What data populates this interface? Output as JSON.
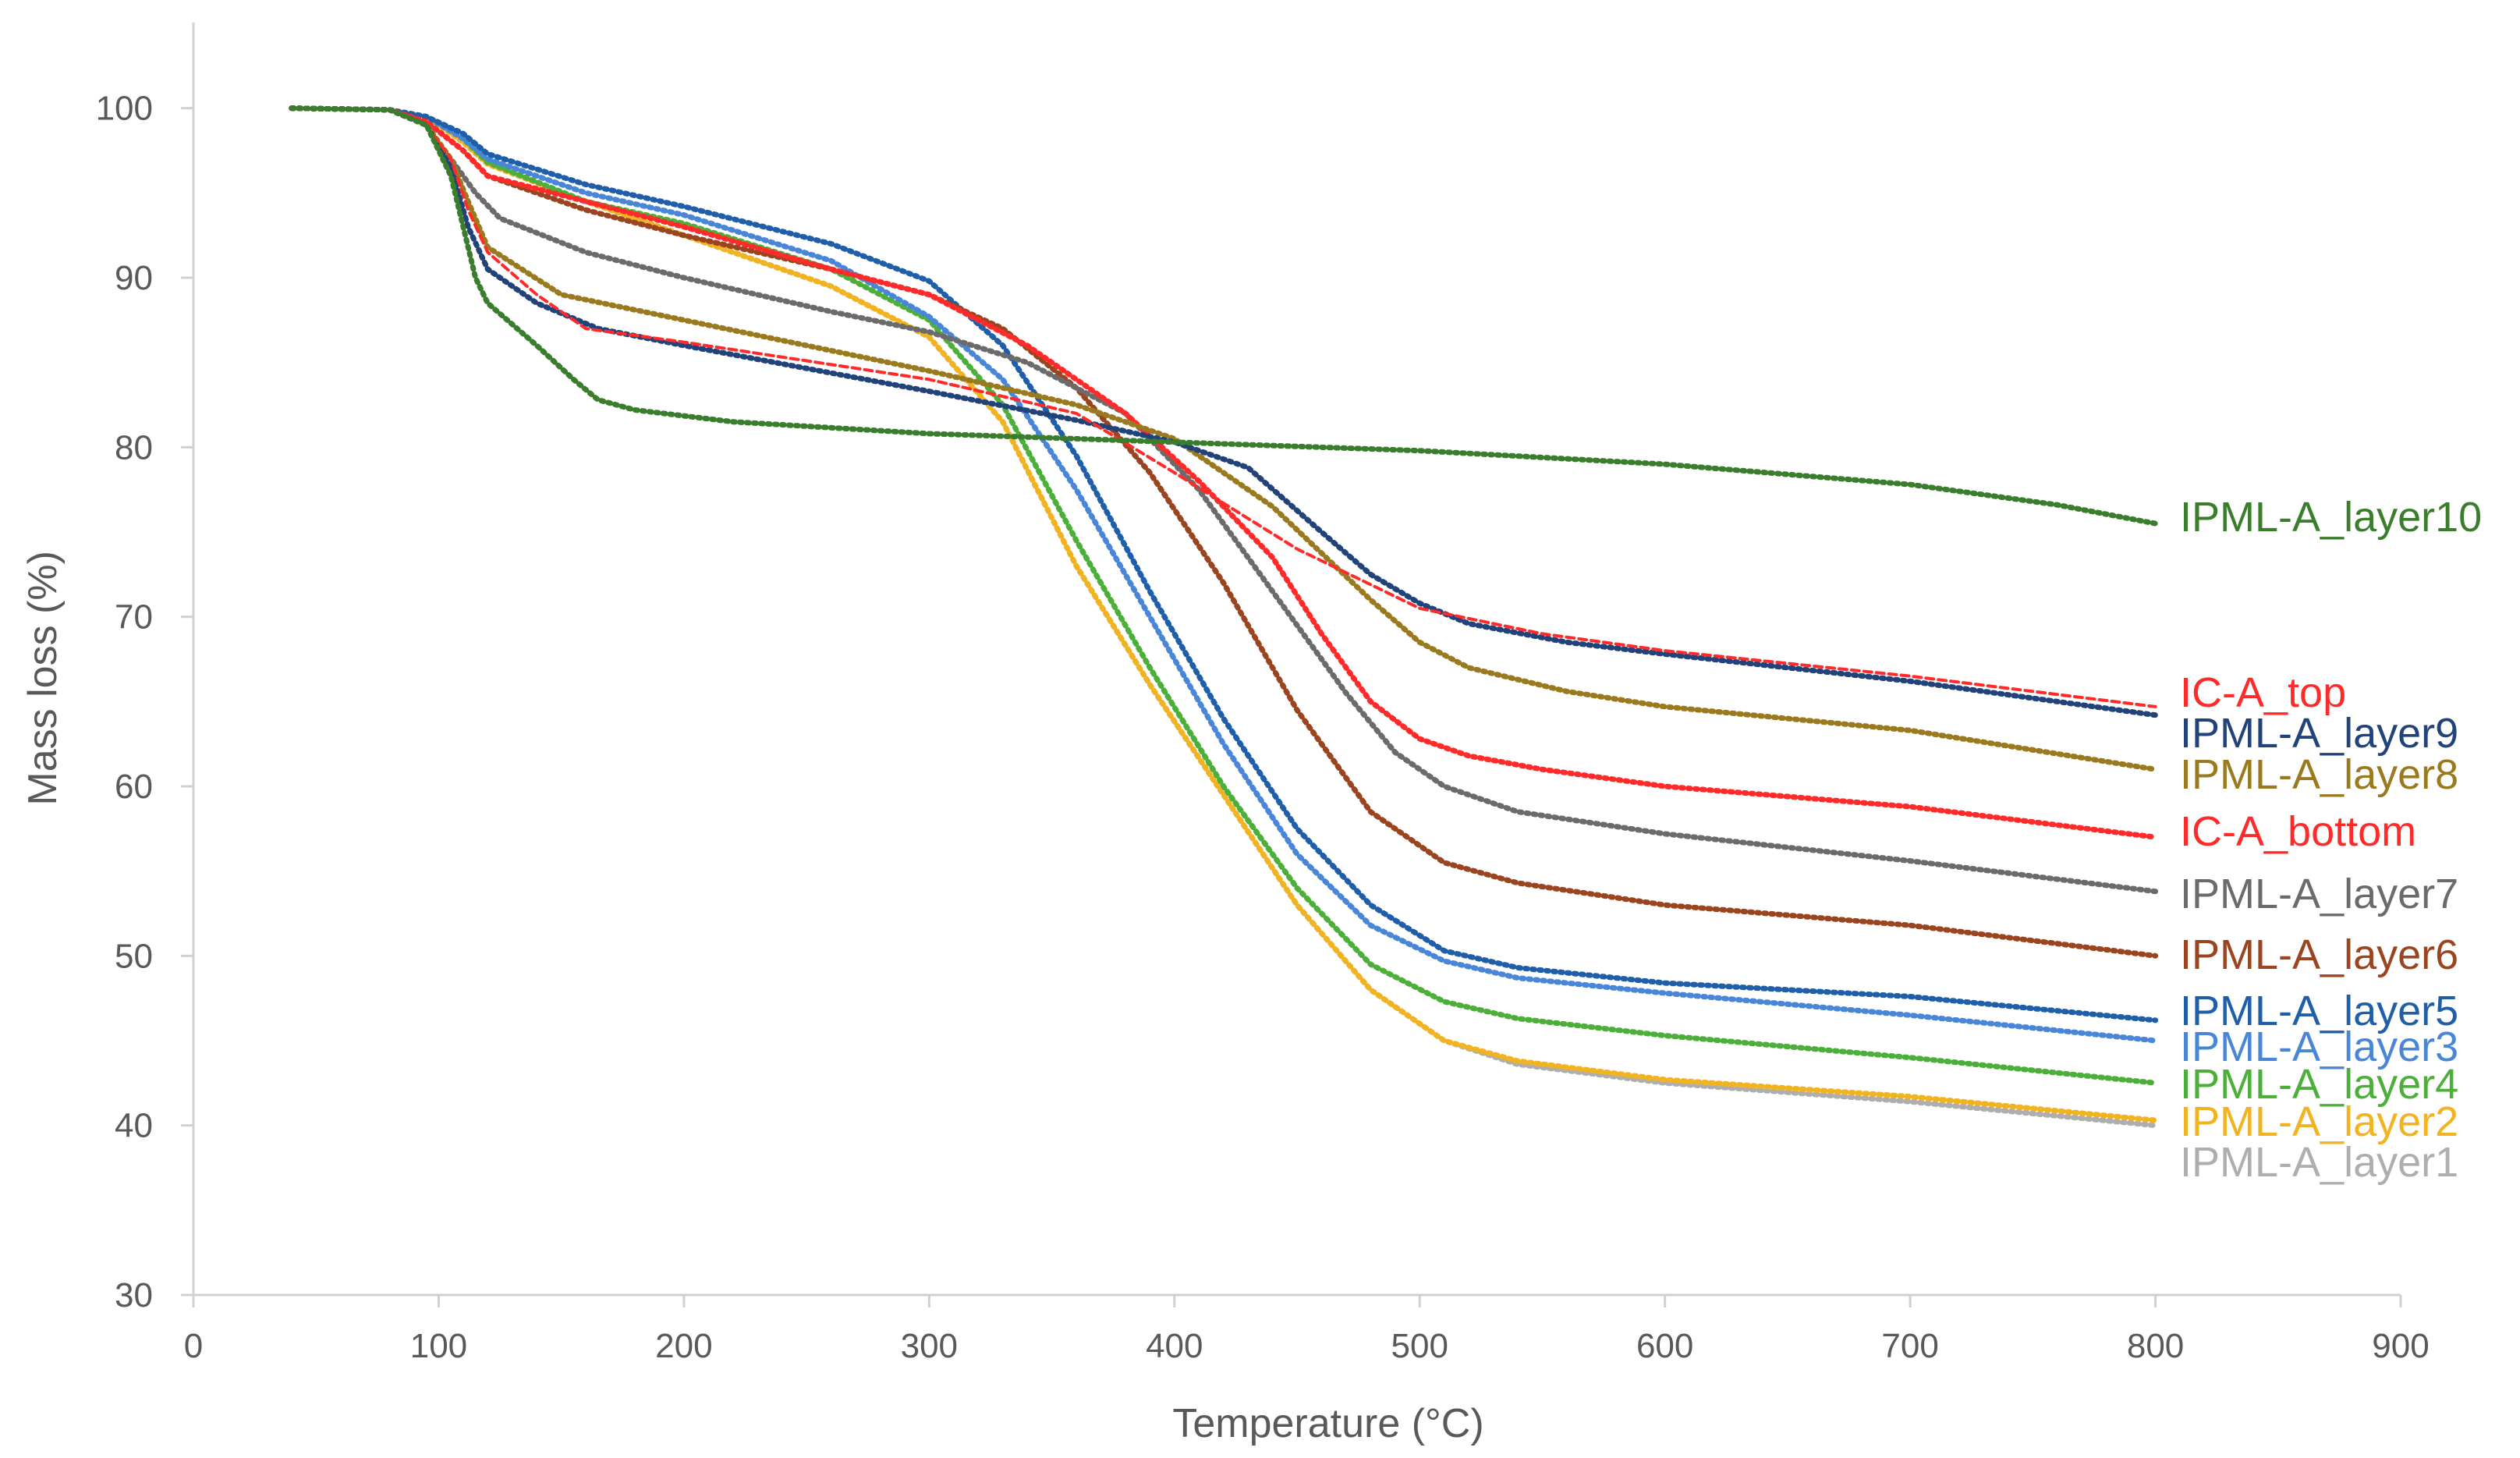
{
  "chart_data": {
    "type": "line",
    "title": "",
    "xlabel": "Temperature (°C)",
    "ylabel": "Mass loss (%)",
    "xlim": [
      0,
      900
    ],
    "ylim": [
      30,
      105
    ],
    "x_ticks": [
      0,
      100,
      200,
      300,
      400,
      500,
      600,
      700,
      800,
      900
    ],
    "y_ticks": [
      30,
      40,
      50,
      60,
      70,
      80,
      90,
      100
    ],
    "grid": false,
    "legend_position": "right, at line ends",
    "series": [
      {
        "name": "IPML-A_layer10",
        "color": "#3a7d2c",
        "dashed": false,
        "points": [
          [
            40,
            100
          ],
          [
            80,
            99.9
          ],
          [
            95,
            99
          ],
          [
            105,
            96
          ],
          [
            110,
            93
          ],
          [
            115,
            90
          ],
          [
            120,
            88.5
          ],
          [
            140,
            86
          ],
          [
            155,
            84
          ],
          [
            165,
            82.8
          ],
          [
            180,
            82.2
          ],
          [
            220,
            81.5
          ],
          [
            300,
            80.8
          ],
          [
            400,
            80.3
          ],
          [
            500,
            79.8
          ],
          [
            600,
            79
          ],
          [
            700,
            77.8
          ],
          [
            760,
            76.6
          ],
          [
            800,
            75.5
          ]
        ]
      },
      {
        "name": "IC-A_top",
        "color": "#ff2a2a",
        "dashed": true,
        "points": [
          [
            40,
            100
          ],
          [
            80,
            99.9
          ],
          [
            95,
            99
          ],
          [
            105,
            97
          ],
          [
            112,
            94
          ],
          [
            120,
            91.5
          ],
          [
            140,
            89
          ],
          [
            160,
            87
          ],
          [
            200,
            86.2
          ],
          [
            300,
            84
          ],
          [
            360,
            82
          ],
          [
            400,
            78.5
          ],
          [
            450,
            74
          ],
          [
            500,
            70.5
          ],
          [
            550,
            69
          ],
          [
            600,
            68
          ],
          [
            700,
            66.5
          ],
          [
            800,
            64.7
          ]
        ]
      },
      {
        "name": "IPML-A_layer9",
        "color": "#22427a",
        "dashed": false,
        "points": [
          [
            40,
            100
          ],
          [
            80,
            99.9
          ],
          [
            95,
            99
          ],
          [
            105,
            96.5
          ],
          [
            112,
            93
          ],
          [
            120,
            90.5
          ],
          [
            140,
            88.5
          ],
          [
            165,
            87
          ],
          [
            200,
            86
          ],
          [
            300,
            83.3
          ],
          [
            360,
            81.6
          ],
          [
            400,
            80.3
          ],
          [
            430,
            78.8
          ],
          [
            460,
            75
          ],
          [
            480,
            72.5
          ],
          [
            500,
            70.8
          ],
          [
            520,
            69.6
          ],
          [
            560,
            68.5
          ],
          [
            600,
            67.8
          ],
          [
            700,
            66.2
          ],
          [
            800,
            64.2
          ]
        ]
      },
      {
        "name": "IPML-A_layer8",
        "color": "#9a7a1e",
        "dashed": false,
        "points": [
          [
            40,
            100
          ],
          [
            80,
            99.9
          ],
          [
            95,
            99
          ],
          [
            105,
            97
          ],
          [
            112,
            94.5
          ],
          [
            120,
            91.8
          ],
          [
            150,
            89
          ],
          [
            200,
            87.5
          ],
          [
            300,
            84.5
          ],
          [
            360,
            82.5
          ],
          [
            400,
            80.5
          ],
          [
            440,
            76.5
          ],
          [
            480,
            71
          ],
          [
            500,
            68.5
          ],
          [
            520,
            67
          ],
          [
            560,
            65.6
          ],
          [
            600,
            64.7
          ],
          [
            700,
            63.3
          ],
          [
            800,
            61
          ]
        ]
      },
      {
        "name": "IC-A_bottom",
        "color": "#ff2a2a",
        "dashed": false,
        "points": [
          [
            40,
            100
          ],
          [
            80,
            99.9
          ],
          [
            95,
            99.2
          ],
          [
            110,
            97.5
          ],
          [
            120,
            96
          ],
          [
            160,
            94.5
          ],
          [
            200,
            93
          ],
          [
            260,
            90.5
          ],
          [
            300,
            89
          ],
          [
            340,
            86
          ],
          [
            380,
            82
          ],
          [
            410,
            78
          ],
          [
            440,
            73.5
          ],
          [
            460,
            69
          ],
          [
            480,
            65
          ],
          [
            500,
            62.8
          ],
          [
            520,
            61.8
          ],
          [
            550,
            61
          ],
          [
            600,
            60
          ],
          [
            700,
            58.8
          ],
          [
            800,
            57
          ]
        ]
      },
      {
        "name": "IPML-A_layer7",
        "color": "#6b6b6b",
        "dashed": false,
        "points": [
          [
            40,
            100
          ],
          [
            80,
            99.9
          ],
          [
            95,
            99
          ],
          [
            105,
            97
          ],
          [
            115,
            95
          ],
          [
            125,
            93.5
          ],
          [
            160,
            91.5
          ],
          [
            200,
            90
          ],
          [
            260,
            88
          ],
          [
            300,
            86.8
          ],
          [
            340,
            85
          ],
          [
            380,
            82
          ],
          [
            410,
            77.5
          ],
          [
            440,
            71.5
          ],
          [
            470,
            65.5
          ],
          [
            490,
            62
          ],
          [
            510,
            60
          ],
          [
            540,
            58.5
          ],
          [
            600,
            57.2
          ],
          [
            700,
            55.6
          ],
          [
            800,
            53.8
          ]
        ]
      },
      {
        "name": "IPML-A_layer6",
        "color": "#9a4520",
        "dashed": false,
        "points": [
          [
            40,
            100
          ],
          [
            80,
            99.9
          ],
          [
            95,
            99.2
          ],
          [
            110,
            97.5
          ],
          [
            120,
            96
          ],
          [
            160,
            94
          ],
          [
            200,
            92.5
          ],
          [
            260,
            90.5
          ],
          [
            300,
            89
          ],
          [
            330,
            87
          ],
          [
            360,
            83.5
          ],
          [
            390,
            78.5
          ],
          [
            420,
            72
          ],
          [
            450,
            64.5
          ],
          [
            480,
            58.5
          ],
          [
            510,
            55.5
          ],
          [
            540,
            54.3
          ],
          [
            600,
            53
          ],
          [
            700,
            51.8
          ],
          [
            800,
            50
          ]
        ]
      },
      {
        "name": "IPML-A_layer5",
        "color": "#1f5ea8",
        "dashed": false,
        "points": [
          [
            40,
            100
          ],
          [
            80,
            99.9
          ],
          [
            95,
            99.5
          ],
          [
            110,
            98.5
          ],
          [
            120,
            97.3
          ],
          [
            160,
            95.5
          ],
          [
            200,
            94.2
          ],
          [
            260,
            92
          ],
          [
            300,
            89.8
          ],
          [
            330,
            86
          ],
          [
            360,
            79.5
          ],
          [
            390,
            71.5
          ],
          [
            420,
            64
          ],
          [
            450,
            57.5
          ],
          [
            480,
            53
          ],
          [
            510,
            50.3
          ],
          [
            540,
            49.3
          ],
          [
            600,
            48.4
          ],
          [
            700,
            47.6
          ],
          [
            800,
            46.2
          ]
        ]
      },
      {
        "name": "IPML-A_layer3",
        "color": "#4a86d8",
        "dashed": false,
        "points": [
          [
            40,
            100
          ],
          [
            80,
            99.9
          ],
          [
            95,
            99.5
          ],
          [
            110,
            98.2
          ],
          [
            120,
            97
          ],
          [
            160,
            95
          ],
          [
            200,
            93.7
          ],
          [
            260,
            91
          ],
          [
            300,
            87.7
          ],
          [
            330,
            84
          ],
          [
            360,
            77.5
          ],
          [
            390,
            70
          ],
          [
            420,
            62.5
          ],
          [
            450,
            56
          ],
          [
            480,
            51.8
          ],
          [
            510,
            49.7
          ],
          [
            540,
            48.7
          ],
          [
            600,
            47.8
          ],
          [
            700,
            46.5
          ],
          [
            800,
            45
          ]
        ]
      },
      {
        "name": "IPML-A_layer4",
        "color": "#4caf3a",
        "dashed": false,
        "points": [
          [
            40,
            100
          ],
          [
            80,
            99.9
          ],
          [
            95,
            99.5
          ],
          [
            110,
            98.2
          ],
          [
            120,
            96.8
          ],
          [
            160,
            94.5
          ],
          [
            200,
            93.2
          ],
          [
            260,
            90.5
          ],
          [
            300,
            87.5
          ],
          [
            330,
            82.5
          ],
          [
            360,
            74.5
          ],
          [
            390,
            67
          ],
          [
            420,
            60
          ],
          [
            450,
            54
          ],
          [
            480,
            49.5
          ],
          [
            510,
            47.3
          ],
          [
            540,
            46.3
          ],
          [
            600,
            45.3
          ],
          [
            700,
            44
          ],
          [
            800,
            42.5
          ]
        ]
      },
      {
        "name": "IPML-A_layer2",
        "color": "#f2b320",
        "dashed": false,
        "points": [
          [
            40,
            100
          ],
          [
            80,
            99.9
          ],
          [
            95,
            99.5
          ],
          [
            110,
            98
          ],
          [
            120,
            96.7
          ],
          [
            160,
            94.5
          ],
          [
            200,
            92.5
          ],
          [
            260,
            89.5
          ],
          [
            300,
            86.5
          ],
          [
            330,
            81.5
          ],
          [
            360,
            73
          ],
          [
            390,
            66
          ],
          [
            420,
            59.5
          ],
          [
            450,
            53
          ],
          [
            480,
            48
          ],
          [
            510,
            45
          ],
          [
            540,
            43.8
          ],
          [
            600,
            42.7
          ],
          [
            700,
            41.7
          ],
          [
            800,
            40.3
          ]
        ]
      },
      {
        "name": "IPML-A_layer1",
        "color": "#aeaeae",
        "dashed": false,
        "points": [
          [
            40,
            100
          ],
          [
            80,
            99.9
          ],
          [
            95,
            99.5
          ],
          [
            110,
            98
          ],
          [
            120,
            96.7
          ],
          [
            160,
            94.5
          ],
          [
            200,
            92.5
          ],
          [
            260,
            89.5
          ],
          [
            300,
            86.5
          ],
          [
            330,
            81.5
          ],
          [
            360,
            73
          ],
          [
            390,
            66
          ],
          [
            420,
            59.5
          ],
          [
            450,
            53
          ],
          [
            480,
            48
          ],
          [
            510,
            45
          ],
          [
            540,
            43.6
          ],
          [
            600,
            42.5
          ],
          [
            700,
            41.4
          ],
          [
            800,
            40
          ]
        ]
      }
    ],
    "legend_labels": [
      {
        "name": "IPML-A_layer10",
        "color": "#3a7d2c"
      },
      {
        "name": "IC-A_top",
        "color": "#ff2a2a"
      },
      {
        "name": "IPML-A_layer9",
        "color": "#22427a"
      },
      {
        "name": "IPML-A_layer8",
        "color": "#9a7a1e"
      },
      {
        "name": "IC-A_bottom",
        "color": "#ff2a2a"
      },
      {
        "name": "IPML-A_layer7",
        "color": "#6b6b6b"
      },
      {
        "name": "IPML-A_layer6",
        "color": "#9a4520"
      },
      {
        "name": "IPML-A_layer5",
        "color": "#1f5ea8"
      },
      {
        "name": "IPML-A_layer3",
        "color": "#4a86d8"
      },
      {
        "name": "IPML-A_layer4",
        "color": "#4caf3a"
      },
      {
        "name": "IPML-A_layer2",
        "color": "#f2b320"
      },
      {
        "name": "IPML-A_layer1",
        "color": "#aeaeae"
      }
    ]
  }
}
